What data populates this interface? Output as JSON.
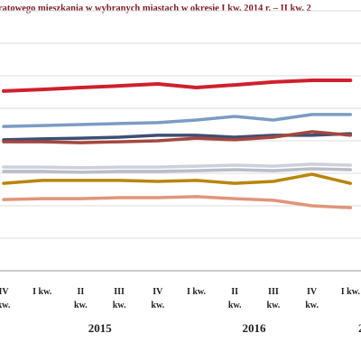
{
  "chart_data": {
    "type": "line",
    "title": "ratowego mieszkania w wybranych miastach w okresie I kw. 2014 r. – II kw. 2",
    "categories": [
      "IV kw.",
      "I kw.",
      "II kw.",
      "III kw.",
      "IV kw.",
      "I kw.",
      "II kw.",
      "III kw.",
      "IV kw.",
      "I kw."
    ],
    "year_labels": [
      "2015",
      "2016",
      "2"
    ],
    "ylim": [
      0,
      8
    ],
    "yticks": [
      1,
      2,
      3,
      4,
      5,
      6,
      7,
      8
    ],
    "grid": true,
    "series": [
      {
        "color": "#d0202e",
        "values": [
          5.53,
          5.58,
          5.64,
          5.69,
          5.75,
          5.64,
          5.72,
          5.81,
          5.86,
          5.86
        ]
      },
      {
        "color": "#7a9cc4",
        "values": [
          4.44,
          4.47,
          4.5,
          4.53,
          4.56,
          4.64,
          4.75,
          4.64,
          4.81,
          4.81
        ]
      },
      {
        "color": "#3e4f74",
        "values": [
          4.03,
          4.06,
          4.08,
          4.11,
          4.17,
          4.17,
          4.11,
          4.17,
          4.17,
          4.22
        ]
      },
      {
        "color": "#a5473f",
        "values": [
          3.97,
          3.97,
          3.94,
          3.97,
          4.0,
          4.08,
          4.03,
          4.11,
          4.28,
          4.17
        ]
      },
      {
        "color": "#cdd0da",
        "values": [
          3.19,
          3.19,
          3.17,
          3.19,
          3.19,
          3.22,
          3.25,
          3.22,
          3.28,
          3.25
        ]
      },
      {
        "color": "#b9bdc9",
        "values": [
          3.06,
          3.06,
          3.03,
          3.06,
          3.06,
          3.08,
          3.11,
          3.08,
          3.14,
          3.11
        ]
      },
      {
        "color": "#b8860b",
        "values": [
          2.69,
          2.78,
          2.78,
          2.78,
          2.75,
          2.78,
          2.69,
          2.75,
          2.97,
          2.69
        ]
      },
      {
        "color": "#e0957a",
        "values": [
          2.19,
          2.22,
          2.22,
          2.25,
          2.25,
          2.28,
          2.22,
          2.17,
          2.0,
          1.94
        ]
      }
    ]
  }
}
